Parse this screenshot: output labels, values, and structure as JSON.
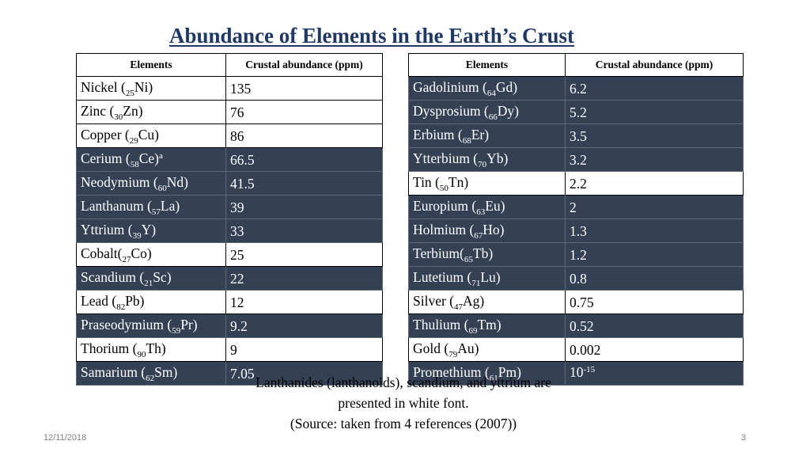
{
  "title": "Abundance of Elements in the Earth’s Crust",
  "left_table": {
    "headers": [
      "Elements",
      "Crustal abundance (ppm)"
    ],
    "rows": [
      {
        "name": "Nickel (",
        "sub": "25",
        "sym": "Ni)",
        "sup": "",
        "value": "135",
        "highlight": false
      },
      {
        "name": "Zinc (",
        "sub": "30",
        "sym": "Zn)",
        "sup": "",
        "value": "76",
        "highlight": false
      },
      {
        "name": "Copper (",
        "sub": "29",
        "sym": "Cu)",
        "sup": "",
        "value": "86",
        "highlight": false
      },
      {
        "name": "Cerium (",
        "sub": "58",
        "sym": "Ce)",
        "sup": "a",
        "value": "66.5",
        "highlight": true
      },
      {
        "name": "Neodymium (",
        "sub": "60",
        "sym": "Nd)",
        "sup": "",
        "value": "41.5",
        "highlight": true
      },
      {
        "name": "Lanthanum (",
        "sub": "57",
        "sym": "La)",
        "sup": "",
        "value": "39",
        "highlight": true
      },
      {
        "name": "Yttrium (",
        "sub": "39",
        "sym": "Y)",
        "sup": "",
        "value": "33",
        "highlight": true
      },
      {
        "name": "Cobalt(",
        "sub": "27",
        "sym": "Co)",
        "sup": "",
        "value": "25",
        "highlight": false
      },
      {
        "name": "Scandium (",
        "sub": "21",
        "sym": "Sc)",
        "sup": "",
        "value": "22",
        "highlight": true
      },
      {
        "name": "Lead (",
        "sub": "82",
        "sym": "Pb)",
        "sup": "",
        "value": "12",
        "highlight": false
      },
      {
        "name": "Praseodymium (",
        "sub": "59",
        "sym": "Pr)",
        "sup": "",
        "value": "9.2",
        "highlight": true
      },
      {
        "name": "Thorium (",
        "sub": "90",
        "sym": "Th)",
        "sup": "",
        "value": "9",
        "highlight": false
      },
      {
        "name": "Samarium (",
        "sub": "62",
        "sym": "Sm)",
        "sup": "",
        "value": "7.05",
        "highlight": true
      }
    ]
  },
  "right_table": {
    "headers": [
      "Elements",
      "Crustal abundance (ppm)"
    ],
    "rows": [
      {
        "name": "Gadolinium (",
        "sub": "64",
        "sym": "Gd)",
        "sup": "",
        "value": "6.2",
        "value_sup": "",
        "highlight": true
      },
      {
        "name": "Dysprosium (",
        "sub": "66",
        "sym": "Dy)",
        "sup": "",
        "value": "5.2",
        "value_sup": "",
        "highlight": true
      },
      {
        "name": "Erbium (",
        "sub": "68",
        "sym": "Er)",
        "sup": "",
        "value": "3.5",
        "value_sup": "",
        "highlight": true
      },
      {
        "name": "Ytterbium (",
        "sub": "70",
        "sym": "Yb)",
        "sup": "",
        "value": "3.2",
        "value_sup": "",
        "highlight": true
      },
      {
        "name": "Tin (",
        "sub": "50",
        "sym": "Tn)",
        "sup": "",
        "value": "2.2",
        "value_sup": "",
        "highlight": false
      },
      {
        "name": "Europium (",
        "sub": "63",
        "sym": "Eu)",
        "sup": "",
        "value": "2",
        "value_sup": "",
        "highlight": true
      },
      {
        "name": "Holmium (",
        "sub": "67",
        "sym": "Ho)",
        "sup": "",
        "value": "1.3",
        "value_sup": "",
        "highlight": true
      },
      {
        "name": "Terbium(",
        "sub": "65",
        "sym": "Tb)",
        "sup": "",
        "value": "1.2",
        "value_sup": "",
        "highlight": true
      },
      {
        "name": "Lutetium (",
        "sub": "71",
        "sym": "Lu)",
        "sup": "",
        "value": "0.8",
        "value_sup": "",
        "highlight": true
      },
      {
        "name": "Silver (",
        "sub": "47",
        "sym": "Ag)",
        "sup": "",
        "value": "0.75",
        "value_sup": "",
        "highlight": false
      },
      {
        "name": "Thulium (",
        "sub": "69",
        "sym": "Tm)",
        "sup": "",
        "value": "0.52",
        "value_sup": "",
        "highlight": true
      },
      {
        "name": "Gold (",
        "sub": "79",
        "sym": "Au)",
        "sup": "",
        "value": "0.002",
        "value_sup": "",
        "highlight": false
      },
      {
        "name": "Promethium (",
        "sub": "61",
        "sym": "Pm)",
        "sup": "",
        "value": "10",
        "value_sup": "-15",
        "highlight": true
      }
    ]
  },
  "footnote": {
    "line1": "Lanthanides (lanthanoids), scandium, and yttrium are",
    "line2": "presented in white font.",
    "line3": "(Source: taken from 4 references (2007))"
  },
  "footer": {
    "date": "12/11/2018",
    "page": "3"
  },
  "colors": {
    "title": "#1f3864",
    "highlight_row": "#344154",
    "highlight_text": "#ffffff"
  }
}
